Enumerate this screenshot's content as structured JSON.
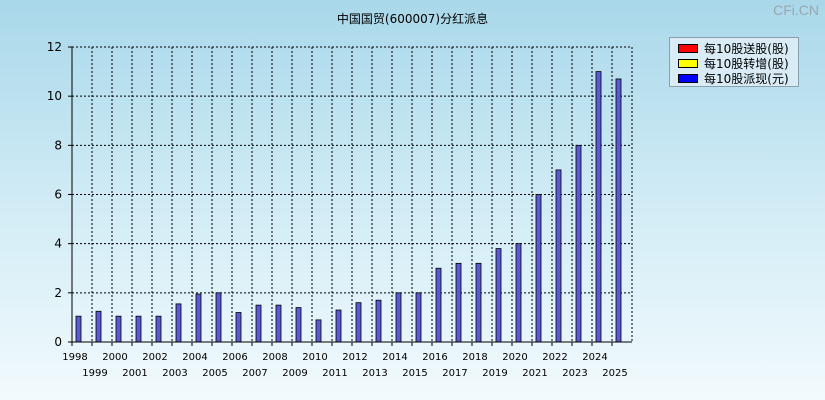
{
  "watermark": "CFi.CN",
  "chart_data": {
    "type": "bar",
    "title": "中国国贸(600007)分红派息",
    "xlabel": "",
    "ylabel": "",
    "ylim": [
      0,
      12
    ],
    "yticks": [
      0,
      2,
      4,
      6,
      8,
      10,
      12
    ],
    "grid": true,
    "legend_position": "top-right",
    "categories": [
      "1998",
      "1999",
      "2000",
      "2001",
      "2002",
      "2003",
      "2004",
      "2005",
      "2006",
      "2007",
      "2008",
      "2009",
      "2010",
      "2011",
      "2012",
      "2013",
      "2014",
      "2015",
      "2016",
      "2017",
      "2018",
      "2019",
      "2020",
      "2021",
      "2022",
      "2023",
      "2024",
      "2025"
    ],
    "series": [
      {
        "name": "每10股送股(股)",
        "color": "#ff0000",
        "values": [
          0,
          0,
          0,
          0,
          0,
          0,
          0,
          0,
          0,
          0,
          0,
          0,
          0,
          0,
          0,
          0,
          0,
          0,
          0,
          0,
          0,
          0,
          0,
          0,
          0,
          0,
          0,
          0
        ]
      },
      {
        "name": "每10股转增(股)",
        "color": "#ffff00",
        "values": [
          0,
          0,
          0,
          0,
          0,
          0,
          0,
          0,
          0,
          0,
          0,
          0,
          0,
          0,
          0,
          0,
          0,
          0,
          0,
          0,
          0,
          0,
          0,
          0,
          0,
          0,
          0,
          0
        ]
      },
      {
        "name": "每10股派现(元)",
        "color": "#0000ff",
        "values": [
          1.05,
          1.25,
          1.05,
          1.05,
          1.05,
          1.55,
          1.95,
          2.0,
          1.2,
          1.5,
          1.5,
          1.4,
          0.9,
          1.3,
          1.6,
          1.7,
          2.0,
          2.0,
          3.0,
          3.2,
          3.2,
          3.8,
          4.0,
          6.0,
          7.0,
          8.0,
          11.0,
          10.7
        ]
      }
    ]
  }
}
